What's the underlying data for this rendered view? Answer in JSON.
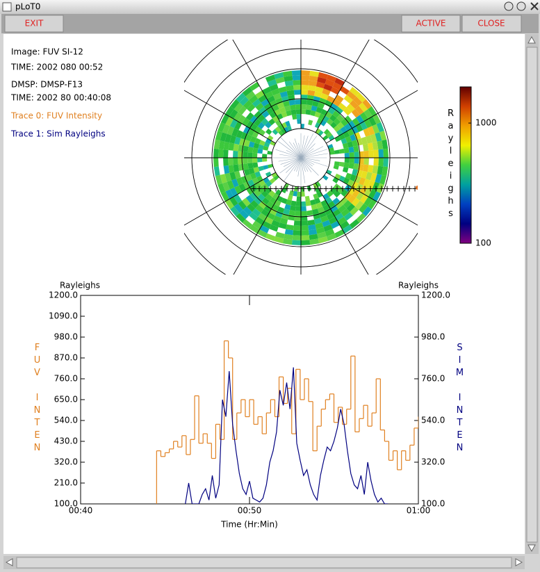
{
  "window": {
    "title": "pLoT0"
  },
  "buttons": [
    "EXIT",
    "ACTIVE",
    "CLOSE"
  ],
  "info": [
    "Image: FUV SI-12",
    "TIME: 2002 080 00:52",
    "DMSP: DMSP-F13",
    "TIME: 2002 80 00:40:08"
  ],
  "colorbar": {
    "label": "Rayleighs",
    "range": [
      100,
      2000
    ],
    "ticks": [
      100,
      1000
    ],
    "log": true,
    "colors": [
      "#800080",
      "#000080",
      "#0040c0",
      "#00a0a0",
      "#40d040",
      "#f0f000",
      "#f0a000",
      "#d04000",
      "#600000"
    ]
  },
  "chart_data": {
    "type": "line",
    "y_label": "Rayleighs",
    "y2_label": "Rayleighs",
    "y_title": "FUV INTEN",
    "y2_title": "SIM INTEN",
    "x_label": "Time (Hr:Min)",
    "xlim": [
      40,
      60
    ],
    "xticks": [
      {
        "value": 40,
        "label": "00:40"
      },
      {
        "value": 50,
        "label": "00:50"
      },
      {
        "value": 60,
        "label": "01:00"
      }
    ],
    "ylim": [
      100,
      1200
    ],
    "yticks": [
      {
        "value": 100,
        "label": "100.0"
      },
      {
        "value": 210,
        "label": "210.0"
      },
      {
        "value": 320,
        "label": "320.0"
      },
      {
        "value": 430,
        "label": "430.0"
      },
      {
        "value": 540,
        "label": "540.0"
      },
      {
        "value": 650,
        "label": "650.0"
      },
      {
        "value": 760,
        "label": "760.0"
      },
      {
        "value": 870,
        "label": "870.0"
      },
      {
        "value": 980,
        "label": "980.0"
      },
      {
        "value": 1090,
        "label": "1090.0"
      },
      {
        "value": 1200,
        "label": "1200.0"
      }
    ],
    "y2lim": [
      100,
      1200
    ],
    "y2ticks": [
      {
        "value": 100,
        "label": "100.0"
      },
      {
        "value": 320,
        "label": "320.0"
      },
      {
        "value": 540,
        "label": "540.0"
      },
      {
        "value": 760,
        "label": "760.0"
      },
      {
        "value": 980,
        "label": "980.0"
      },
      {
        "value": 1200,
        "label": "1200.0"
      }
    ],
    "series": [
      {
        "name": "Trace 0: FUV Intensity",
        "color": "#e08020",
        "axis": "y",
        "step": true,
        "x": [
          44.5,
          44.75,
          45,
          45.25,
          45.5,
          45.75,
          46,
          46.25,
          46.5,
          46.75,
          47,
          47.25,
          47.5,
          47.75,
          48,
          48.25,
          48.5,
          48.75,
          49,
          49.25,
          49.5,
          49.75,
          50,
          50.25,
          50.5,
          50.75,
          51,
          51.25,
          51.5,
          51.75,
          52,
          52.25,
          52.5,
          52.75,
          53,
          53.25,
          53.5,
          53.75,
          54,
          54.25,
          54.5,
          54.75,
          55,
          55.25,
          55.5,
          55.75,
          56,
          56.25,
          56.5,
          56.75,
          57,
          57.25,
          57.5,
          57.75,
          58,
          58.25,
          58.5,
          58.75,
          59,
          59.25,
          59.5,
          59.75,
          60
        ],
        "values": [
          380,
          350,
          370,
          390,
          430,
          400,
          460,
          360,
          440,
          670,
          420,
          470,
          420,
          340,
          520,
          440,
          960,
          870,
          440,
          580,
          650,
          560,
          650,
          520,
          560,
          470,
          580,
          650,
          560,
          770,
          630,
          710,
          470,
          810,
          650,
          760,
          640,
          380,
          510,
          600,
          650,
          680,
          530,
          610,
          520,
          600,
          880,
          480,
          550,
          620,
          510,
          580,
          760,
          490,
          430,
          330,
          380,
          280,
          380,
          330,
          410,
          500,
          560
        ]
      },
      {
        "name": "Trace 1: Sim Rayleighs",
        "color": "#000080",
        "axis": "y2",
        "x": [
          46.2,
          46.4,
          46.6,
          47,
          47.2,
          47.4,
          47.6,
          47.8,
          48,
          48.2,
          48.4,
          48.6,
          48.8,
          49,
          49.2,
          49.4,
          49.6,
          49.8,
          50,
          50.2,
          50.4,
          50.6,
          50.8,
          51,
          51.2,
          51.4,
          51.6,
          51.8,
          52,
          52.2,
          52.4,
          52.6,
          52.8,
          53,
          53.2,
          53.4,
          53.6,
          53.8,
          54,
          54.2,
          54.4,
          54.6,
          54.8,
          55,
          55.2,
          55.4,
          55.6,
          55.8,
          56,
          56.2,
          56.4,
          56.6,
          56.8,
          57,
          57.2,
          57.4,
          57.6,
          57.8,
          58,
          58.2
        ],
        "values": [
          100,
          210,
          100,
          100,
          150,
          180,
          120,
          250,
          130,
          200,
          650,
          560,
          800,
          520,
          380,
          260,
          180,
          150,
          220,
          130,
          120,
          110,
          130,
          200,
          320,
          380,
          480,
          700,
          620,
          740,
          600,
          820,
          420,
          330,
          250,
          280,
          200,
          150,
          120,
          250,
          330,
          400,
          380,
          430,
          500,
          600,
          520,
          380,
          260,
          200,
          180,
          250,
          150,
          320,
          220,
          150,
          110,
          130,
          100,
          100
        ]
      }
    ]
  }
}
